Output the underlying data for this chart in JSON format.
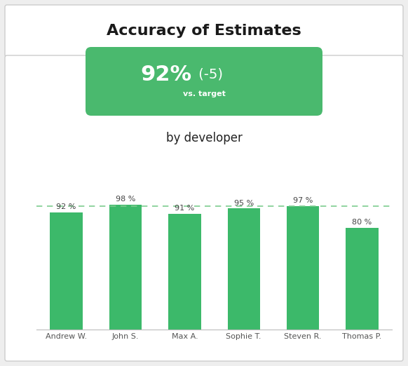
{
  "title": "Accuracy of Estimates",
  "big_number": "92%",
  "delta": " (-5)",
  "vs_target_label": "vs. target",
  "subtitle": "by developer",
  "categories": [
    "Andrew W.",
    "John S.",
    "Max A.",
    "Sophie T.",
    "Steven R.",
    "Thomas P."
  ],
  "values": [
    92,
    98,
    91,
    95,
    97,
    80
  ],
  "target_value": 97,
  "bar_color": "#3cb96a",
  "target_color": "#7dcc8f",
  "bar_label_suffix": " %",
  "background_outer": "#eeeeee",
  "background_inner": "#ffffff",
  "card_color": "#4ab96e",
  "title_fontsize": 16,
  "subtitle_fontsize": 12,
  "bar_label_fontsize": 8,
  "xlabel_fontsize": 8,
  "legend_fontsize": 8,
  "big_number_fontsize": 22,
  "delta_fontsize": 14,
  "vs_target_fontsize": 8
}
